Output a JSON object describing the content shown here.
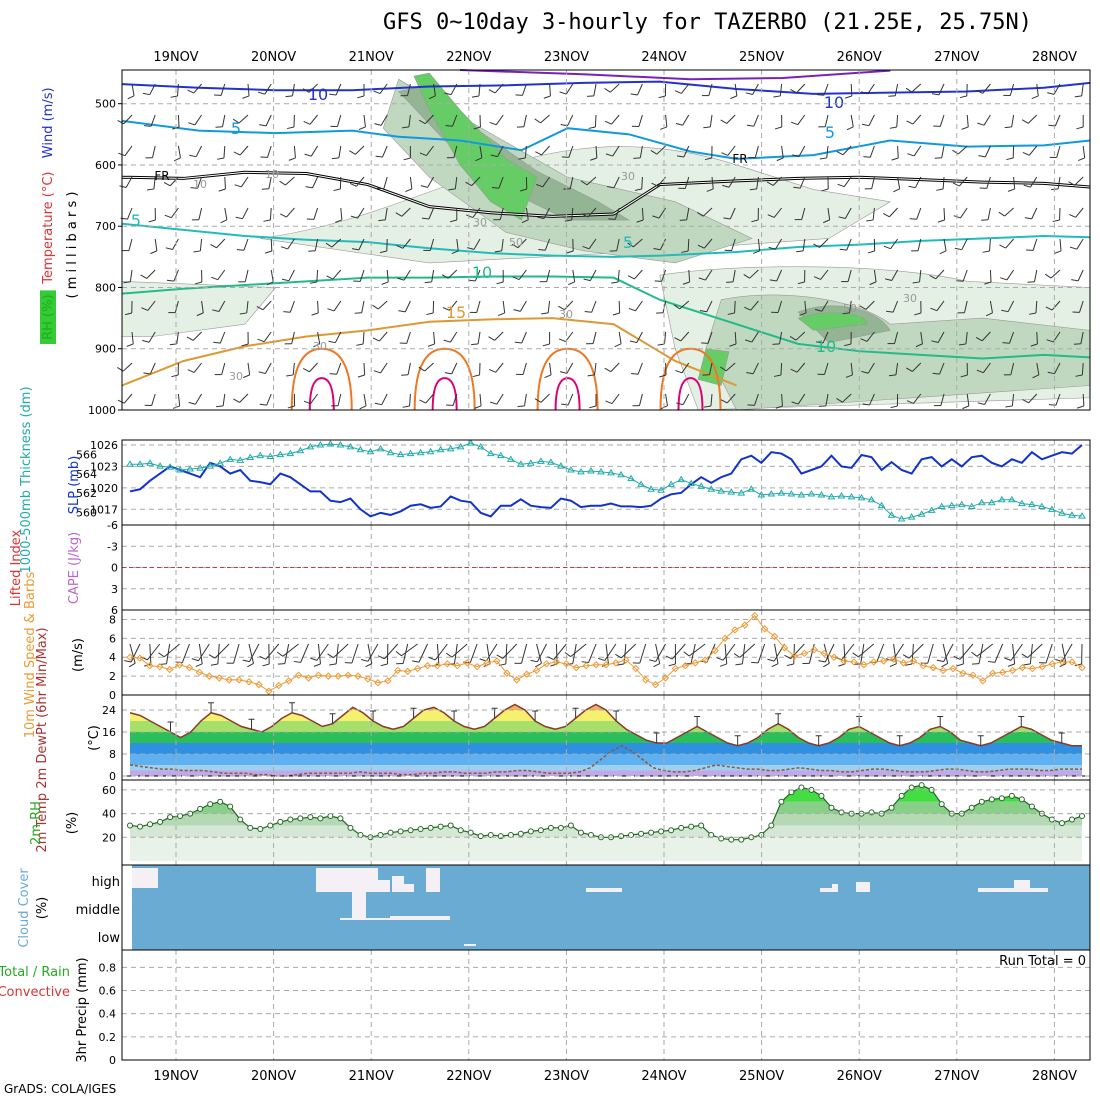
{
  "header": {
    "title": "GFS 0~10day 3-hourly for TAZERBO (21.25E, 25.75N)",
    "credit": "GrADS: COLA/IGES"
  },
  "colors": {
    "rh_light": "#e4f0e4",
    "rh_mid": "#c0d8c0",
    "rh_dark": "#93b593",
    "rh_green": "#66cc66",
    "wind10": "#2233cc",
    "wind5": "#1199dd",
    "temp5": "#22bbbb",
    "temp10": "#22bb88",
    "temp15": "#dd9933",
    "temp20": "#ee7722",
    "temp25": "#dd0077",
    "slp": "#1133cc",
    "thick": "#22aaaa",
    "li_zero": "#dd3333",
    "wind_speed": "#ee9933",
    "cloud": "#6aabd4",
    "cloud_clear": "#f4f0f6"
  },
  "chart_data": [
    {
      "id": "upper_air",
      "type": "heatmap",
      "ylabel_parts": [
        {
          "text": "RH (%)",
          "color": "#22aa22"
        },
        {
          "text": "Temperature (°C)",
          "color": "#dd3333"
        },
        {
          "text": "Wind (m/s)",
          "color": "#2233cc"
        }
      ],
      "ylabel_unit": "( m i l l i b a r s )",
      "y_ticks": [
        "500",
        "600",
        "700",
        "800",
        "900",
        "1000"
      ],
      "y_tick_values": [
        500,
        600,
        700,
        800,
        900,
        1000
      ],
      "contour_labels": [
        "10",
        "10",
        "5",
        "5",
        "5",
        "5",
        "10",
        "10",
        "15",
        "FR",
        "FR",
        "10",
        "10",
        "30",
        "30",
        "30",
        "30",
        "50",
        "30",
        "30",
        "50"
      ],
      "isotherms": [
        {
          "label": "5",
          "points": [
            [
              0,
              696
            ],
            [
              8,
              706
            ],
            [
              16,
              716
            ],
            [
              24,
              722
            ],
            [
              32,
              726
            ],
            [
              40,
              736
            ],
            [
              48,
              744
            ],
            [
              56,
              748
            ],
            [
              64,
              750
            ],
            [
              70,
              748
            ],
            [
              80,
              742
            ],
            [
              88,
              734
            ],
            [
              96,
              730
            ],
            [
              104,
              724
            ],
            [
              112,
              720
            ],
            [
              120,
              716
            ],
            [
              126,
              718
            ]
          ]
        },
        {
          "label": "10",
          "points": [
            [
              0,
              810
            ],
            [
              8,
              802
            ],
            [
              16,
              796
            ],
            [
              24,
              790
            ],
            [
              32,
              784
            ],
            [
              40,
              784
            ],
            [
              48,
              782
            ],
            [
              56,
              782
            ],
            [
              64,
              784
            ],
            [
              70,
              820
            ],
            [
              80,
              860
            ],
            [
              88,
              892
            ],
            [
              96,
              904
            ],
            [
              104,
              910
            ],
            [
              112,
              916
            ],
            [
              120,
              910
            ],
            [
              126,
              914
            ]
          ]
        },
        {
          "label": "15",
          "points": [
            [
              0,
              960
            ],
            [
              8,
              920
            ],
            [
              16,
              896
            ],
            [
              24,
              880
            ],
            [
              32,
              870
            ],
            [
              40,
              856
            ],
            [
              48,
              852
            ],
            [
              56,
              850
            ],
            [
              64,
              860
            ],
            [
              72,
              920
            ],
            [
              80,
              960
            ]
          ]
        }
      ],
      "freezing_level": {
        "label": "FR",
        "points": [
          [
            0,
            620
          ],
          [
            8,
            622
          ],
          [
            16,
            612
          ],
          [
            24,
            614
          ],
          [
            32,
            632
          ],
          [
            40,
            668
          ],
          [
            48,
            678
          ],
          [
            56,
            684
          ],
          [
            64,
            680
          ],
          [
            70,
            632
          ],
          [
            80,
            626
          ],
          [
            88,
            622
          ],
          [
            96,
            620
          ],
          [
            104,
            624
          ],
          [
            112,
            628
          ],
          [
            120,
            630
          ],
          [
            126,
            636
          ]
        ]
      }
    },
    {
      "id": "slp_thickness",
      "type": "line",
      "ylabel_left": "1000-500mb Thickness (dm)",
      "ylabel_right": "SLP (mb)",
      "slp_ticks": [
        "1026",
        "1023",
        "1020",
        "1017"
      ],
      "thickness_ticks": [
        "566",
        "564",
        "562",
        "560"
      ],
      "slp": [
        1019.5,
        1019.8,
        1021,
        1022,
        1023,
        1022.5,
        1022,
        1021.5,
        1023.5,
        1023,
        1022,
        1022.5,
        1021,
        1020.8,
        1020.5,
        1022,
        1021.5,
        1020.5,
        1019.5,
        1019.5,
        1018.2,
        1018,
        1018.5,
        1017,
        1016,
        1016.5,
        1016.2,
        1016.7,
        1017.5,
        1017.7,
        1017.2,
        1017.4,
        1018.8,
        1018.2,
        1018,
        1016.5,
        1016,
        1017.5,
        1017.5,
        1018.4,
        1017.5,
        1017.3,
        1017.2,
        1018.5,
        1018.2,
        1017.3,
        1017.5,
        1017.5,
        1017.8,
        1017.4,
        1017.4,
        1017.3,
        1017.5,
        1018.5,
        1019.1,
        1019.3,
        1020.5,
        1021.5,
        1020.7,
        1021.5,
        1022,
        1024,
        1024.5,
        1023.5,
        1025,
        1024.8,
        1024,
        1022,
        1022.5,
        1023,
        1024.5,
        1023,
        1022.8,
        1024.6,
        1024.3,
        1022.5,
        1023.6,
        1022.5,
        1022,
        1024,
        1024.3,
        1023,
        1024,
        1023,
        1024.3,
        1024.5,
        1023.5,
        1023,
        1024,
        1023.5,
        1025,
        1024,
        1024.5,
        1025,
        1024.8,
        1026
      ],
      "thickness": [
        565,
        565,
        565.1,
        564.8,
        564.7,
        564.4,
        564.5,
        564.6,
        564.8,
        565.1,
        565.5,
        565.4,
        565.7,
        565.9,
        565.8,
        566,
        566.1,
        566.4,
        566.8,
        567,
        567.1,
        567,
        566.8,
        566.5,
        566.3,
        566.6,
        566.2,
        566,
        566.1,
        566.2,
        566.3,
        566.5,
        566.6,
        566.8,
        567.2,
        566.8,
        566.1,
        565.9,
        565.5,
        565,
        565.1,
        565.3,
        565.2,
        564.8,
        564.4,
        564.2,
        564.3,
        564.2,
        564.1,
        563.9,
        563.5,
        562.9,
        562.4,
        562.3,
        562.9,
        563.4,
        563,
        562.7,
        562.4,
        562.2,
        562.1,
        562,
        562.4,
        561.8,
        561.9,
        562,
        561.9,
        561.8,
        561.9,
        561.8,
        561.6,
        561.7,
        561.6,
        561.5,
        561.3,
        560.7,
        559.7,
        559.3,
        559.5,
        559.8,
        560.2,
        560.6,
        560.7,
        560.8,
        560.6,
        561,
        561,
        561.3,
        561.3,
        560.9,
        560.8,
        560.6,
        560.3,
        559.9,
        559.7,
        559.6
      ]
    },
    {
      "id": "cape_li",
      "type": "line",
      "ylabel_left": "Lifted Index",
      "ylabel_right": "CAPE (J/kg)",
      "y_ticks": [
        "-6",
        "-3",
        "0",
        "3",
        "6"
      ],
      "lifted_index": []
    },
    {
      "id": "wind10m",
      "type": "line",
      "ylabel": "10m Wind Speed & Barbs",
      "yunit": "(m/s)",
      "y_ticks": [
        "8",
        "6",
        "4",
        "2",
        "0"
      ],
      "ylim": [
        0,
        9
      ],
      "values": [
        4.0,
        3.9,
        3.1,
        3.0,
        2.7,
        3.2,
        2.9,
        2.4,
        2.0,
        1.8,
        1.6,
        1.6,
        1.4,
        1.1,
        0.4,
        1.0,
        1.5,
        2.1,
        1.8,
        2.1,
        2.0,
        2.0,
        2.1,
        2.0,
        1.7,
        1.3,
        1.5,
        2.6,
        2.5,
        2.8,
        3.1,
        3.1,
        3.3,
        3.1,
        3.4,
        3.0,
        3.4,
        3.6,
        2.3,
        1.6,
        2.2,
        2.6,
        3.3,
        3.5,
        3.3,
        2.9,
        3.1,
        3.2,
        3.2,
        3.4,
        3.7,
        2.8,
        1.6,
        1.1,
        1.8,
        2.8,
        3.1,
        3.4,
        3.7,
        4.7,
        6.0,
        6.9,
        7.4,
        8.4,
        7.0,
        6.2,
        5.0,
        4.1,
        4.4,
        4.8,
        4.4,
        4.0,
        3.6,
        3.5,
        3.2,
        3.5,
        3.6,
        3.8,
        3.4,
        3.6,
        3.1,
        2.9,
        2.6,
        2.8,
        2.3,
        2.1,
        1.5,
        2.3,
        2.4,
        2.6,
        2.9,
        2.8,
        3.0,
        3.3,
        3.5,
        3.5,
        2.9
      ]
    },
    {
      "id": "temp2m",
      "type": "area",
      "ylabel": "2m Temp 2m DewPt (6hr Min/Max)",
      "yunit": "(°C)",
      "y_ticks": [
        "24",
        "16",
        "8",
        "0"
      ],
      "ylim": [
        0,
        28
      ],
      "temperature": [
        23,
        22,
        20,
        18,
        16,
        14,
        16,
        20,
        23,
        22,
        20,
        18,
        17,
        16,
        18,
        21,
        23,
        22,
        20,
        18,
        19,
        22,
        25,
        23,
        20,
        18,
        17,
        18,
        21,
        24,
        25,
        23,
        20,
        18,
        17,
        18,
        21,
        24,
        26,
        24,
        20,
        18,
        17,
        18,
        21,
        24,
        26,
        24,
        20,
        17,
        15,
        13,
        12,
        12,
        14,
        16,
        18,
        16,
        14,
        12,
        11,
        12,
        14,
        17,
        19,
        17,
        14,
        12,
        11,
        12,
        14,
        17,
        18,
        16,
        14,
        12,
        11,
        12,
        14,
        17,
        18,
        16,
        13,
        12,
        11,
        12,
        14,
        16,
        18,
        17,
        15,
        13,
        12,
        11,
        11
      ],
      "dewpoint": [
        4,
        3.5,
        3,
        2.5,
        2.5,
        2,
        2,
        2,
        1.5,
        1,
        1,
        1,
        0.5,
        0.5,
        0,
        0,
        0.5,
        1,
        1,
        1,
        1,
        1,
        1.5,
        1,
        1,
        1,
        0.5,
        0.5,
        1,
        1,
        1.5,
        1.5,
        1,
        1,
        1,
        1.5,
        1.5,
        2,
        2,
        1.5,
        1,
        1,
        1,
        1.5,
        3,
        6,
        9,
        11,
        9,
        6,
        3,
        2,
        1.5,
        1.5,
        2,
        3,
        4,
        3.5,
        3,
        2.5,
        2.5,
        2,
        2,
        2.5,
        3,
        2.5,
        2,
        2,
        1.5,
        1.5,
        2,
        2.5,
        2.5,
        2,
        1.5,
        1.5,
        1.5,
        2,
        2.5,
        2.5,
        2,
        1.5,
        1.5,
        2,
        2.5,
        2.5,
        2.5,
        2,
        2,
        2.5,
        2.5,
        2.5
      ]
    },
    {
      "id": "rh2m",
      "type": "area",
      "ylabel": "2m RH",
      "yunit": "(%)",
      "y_ticks": [
        "60",
        "40",
        "20"
      ],
      "ylim": [
        0,
        65
      ],
      "values": [
        30,
        29,
        31,
        33,
        37,
        38,
        40,
        44,
        48,
        50,
        46,
        35,
        28,
        27,
        30,
        33,
        35,
        36,
        37,
        36,
        38,
        36,
        28,
        22,
        20,
        22,
        24,
        25,
        26,
        27,
        28,
        29,
        30,
        26,
        24,
        21,
        22,
        21,
        22,
        23,
        25,
        26,
        28,
        28,
        30,
        24,
        22,
        20,
        20,
        21,
        22,
        23,
        24,
        25,
        26,
        28,
        29,
        30,
        22,
        19,
        18,
        18,
        20,
        22,
        30,
        50,
        58,
        62,
        60,
        55,
        45,
        41,
        40,
        40,
        41,
        40,
        45,
        55,
        62,
        64,
        60,
        48,
        40,
        40,
        45,
        50,
        52,
        53,
        55,
        52,
        46,
        40,
        35,
        32,
        35,
        38
      ]
    },
    {
      "id": "cloud",
      "type": "bar",
      "ylabel": "Cloud Cover",
      "yunit": "(%)",
      "levels": [
        "high",
        "middle",
        "low"
      ]
    },
    {
      "id": "precip",
      "type": "bar",
      "ylabel_parts": [
        {
          "text": "Total / Rain",
          "color": "#22aa22"
        },
        {
          "text": "Convective",
          "color": "#dd3333"
        }
      ],
      "yunit": "3hr Precip (mm)",
      "y_ticks": [
        "0.8",
        "0.6",
        "0.4",
        "0.2",
        "0"
      ],
      "ylim": [
        0,
        0.95
      ],
      "run_total": "Run Total = 0",
      "values": []
    }
  ],
  "time_axis": {
    "labels": [
      "19NOV",
      "20NOV",
      "21NOV",
      "22NOV",
      "23NOV",
      "24NOV",
      "25NOV",
      "26NOV",
      "27NOV",
      "28NOV"
    ]
  }
}
